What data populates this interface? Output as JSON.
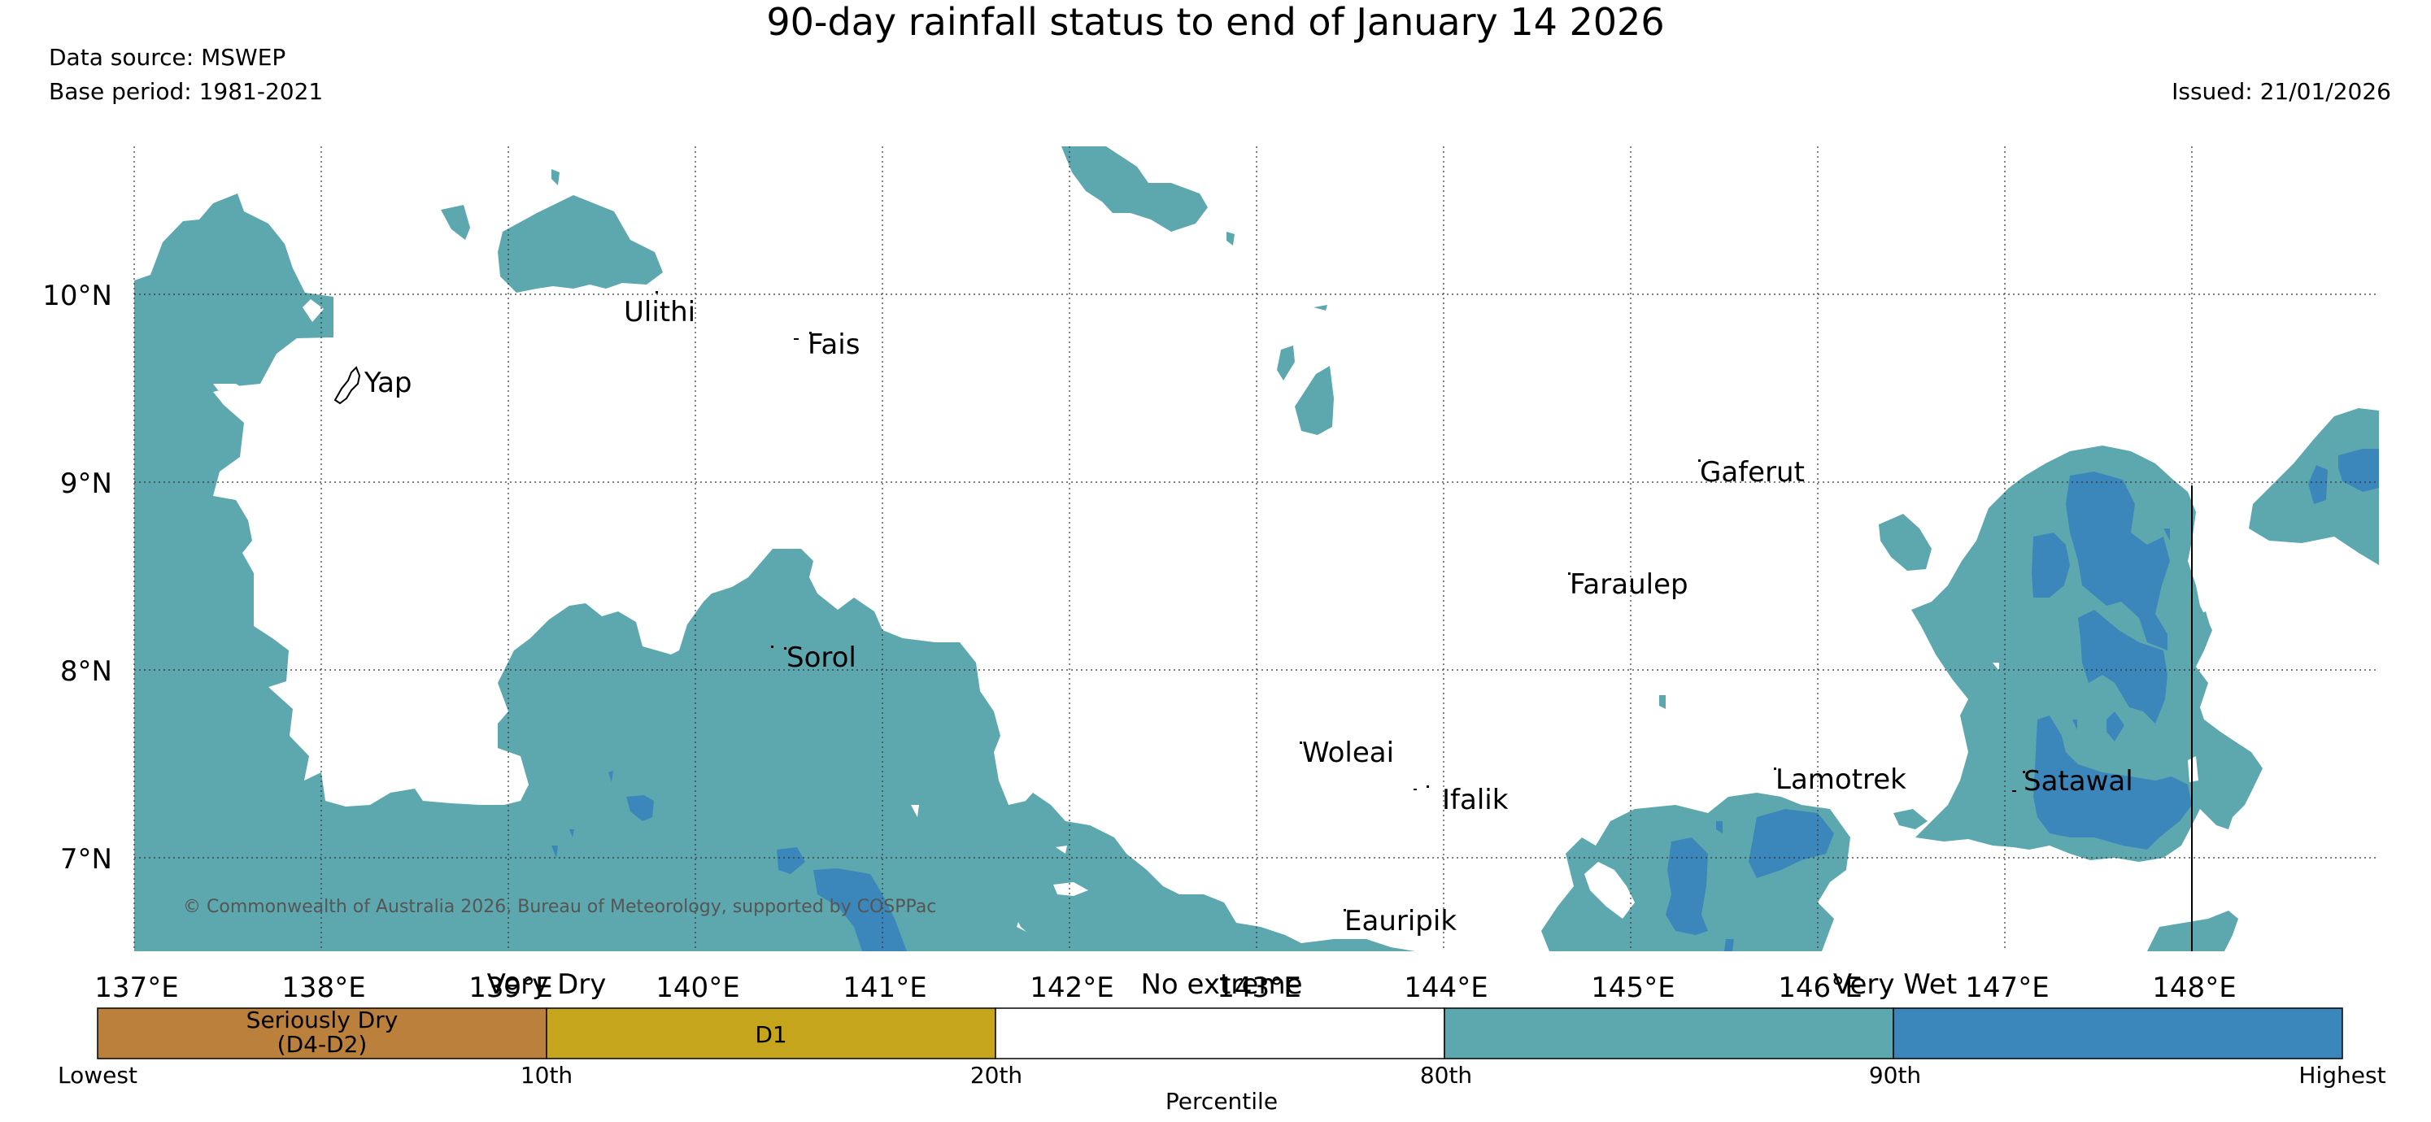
{
  "title": "90-day rainfall status to end of January 14 2026",
  "data_source": "Data source: MSWEP",
  "base_period": "Base period: 1981-2021",
  "issued": "Issued: 21/01/2026",
  "copyright": "© Commonwealth of Australia 2026, Bureau of Meteorology, supported by COSPPac",
  "map": {
    "lon_labels": [
      "137°E",
      "138°E",
      "139°E",
      "140°E",
      "141°E",
      "142°E",
      "143°E",
      "144°E",
      "145°E",
      "146°E",
      "147°E",
      "148°E"
    ],
    "lat_labels": [
      "10°N",
      "9°N",
      "8°N",
      "7°N"
    ],
    "places": [
      "Ulithi",
      "Fais",
      "Yap",
      "Gaferut",
      "Faraulep",
      "Sorol",
      "Woleai",
      "Ifalik",
      "Lamotrek",
      "Satawal",
      "Eauripik"
    ]
  },
  "legend": {
    "group_labels": [
      "Very Dry",
      "No extreme",
      "Very Wet"
    ],
    "categories": [
      {
        "label": "Seriously Dry\n(D4-D2)",
        "color": "#bb803b"
      },
      {
        "label": "D1",
        "color": "#c5a51c"
      },
      {
        "label": "",
        "color": "#ffffff"
      },
      {
        "label": "",
        "color": "#5da8ae"
      },
      {
        "label": "",
        "color": "#3b87bb"
      }
    ],
    "ticks": [
      "Lowest",
      "10th",
      "20th",
      "80th",
      "90th",
      "Highest"
    ],
    "axis_label": "Percentile"
  },
  "colors": {
    "wet": "#5da8ae",
    "very_wet": "#3b87bb",
    "seriously_dry": "#bb803b",
    "d1": "#c5a51c"
  }
}
